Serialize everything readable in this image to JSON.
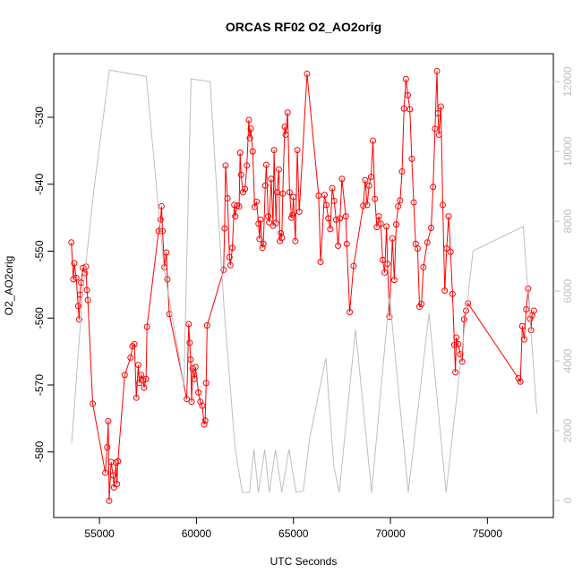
{
  "chart_data": {
    "type": "line",
    "title": "ORCAS RF02 O2_AO2orig",
    "x_label": "UTC Seconds",
    "y_label": "O2_AO2orig",
    "xlim": [
      52640,
      78400
    ],
    "xticks": [
      55000,
      60000,
      65000,
      70000,
      75000
    ],
    "ylim": [
      -589.8,
      -520.5
    ],
    "yticks": [
      -580,
      -570,
      -560,
      -550,
      -540,
      -530
    ],
    "y2lim": [
      -490,
      12800
    ],
    "y2ticks": [
      0,
      2000,
      4000,
      6000,
      8000,
      10000,
      12000
    ],
    "y2_color": "#bebebe",
    "series": [
      {
        "color": "#ff0000",
        "marker": "open-circle",
        "axis": "y",
        "x": [
          53550,
          53650,
          53700,
          53800,
          53900,
          53950,
          54000,
          54050,
          54150,
          54250,
          54300,
          54350,
          54400,
          54650,
          55300,
          55400,
          55450,
          55500,
          55600,
          55700,
          55750,
          55850,
          55900,
          55950,
          56300,
          56600,
          56700,
          56800,
          56900,
          57000,
          57050,
          57150,
          57250,
          57300,
          57400,
          57450,
          58050,
          58150,
          58200,
          58250,
          58350,
          58450,
          58500,
          58600,
          59500,
          59600,
          59650,
          59700,
          59750,
          59800,
          59900,
          59950,
          60100,
          60200,
          60300,
          60400,
          60450,
          60500,
          60550,
          61400,
          61450,
          61500,
          61600,
          61700,
          61750,
          61850,
          61950,
          62000,
          62100,
          62200,
          62250,
          62300,
          62400,
          62500,
          62600,
          62700,
          62750,
          62800,
          62900,
          63000,
          63100,
          63200,
          63250,
          63300,
          63400,
          63450,
          63550,
          63600,
          63700,
          63750,
          63850,
          63950,
          64000,
          64100,
          64150,
          64250,
          64300,
          64350,
          64400,
          64450,
          64550,
          64600,
          64700,
          64800,
          64900,
          64950,
          65000,
          65100,
          65200,
          65300,
          65700,
          66300,
          66400,
          66600,
          66700,
          66800,
          66900,
          67000,
          67100,
          67200,
          67300,
          67400,
          67500,
          67700,
          67750,
          67900,
          68100,
          68600,
          68700,
          68800,
          68900,
          69000,
          69100,
          69200,
          69300,
          69400,
          69500,
          69600,
          69700,
          69800,
          69850,
          69950,
          70100,
          70200,
          70300,
          70400,
          70500,
          70600,
          70700,
          70800,
          70900,
          71000,
          71100,
          71200,
          71300,
          71400,
          71500,
          71600,
          71700,
          71900,
          72100,
          72200,
          72300,
          72400,
          72450,
          72500,
          72600,
          72700,
          72800,
          72900,
          73000,
          73100,
          73200,
          73300,
          73350,
          73400,
          73500,
          73600,
          73700,
          73800,
          73900,
          74000,
          76600,
          76700,
          76800,
          76900,
          77000,
          77100,
          77200,
          77250,
          77300,
          77400
        ],
        "values": [
          -548.7,
          -554.2,
          -551.8,
          -554,
          -558.2,
          -560.2,
          -556.5,
          -554.7,
          -552.5,
          -553.3,
          -552.3,
          -555.8,
          -557.3,
          -572.8,
          -583.1,
          -579.3,
          -575.4,
          -587.3,
          -581.5,
          -583.5,
          -585.3,
          -581.6,
          -584.8,
          -581.4,
          -568.5,
          -565.9,
          -564.2,
          -563.9,
          -571.9,
          -567,
          -569.7,
          -568.5,
          -569.3,
          -570.4,
          -569.1,
          -561.3,
          -547,
          -545.3,
          -543.3,
          -547,
          -552.4,
          -550.2,
          -554.2,
          -559.4,
          -572.1,
          -560.9,
          -563.7,
          -566.2,
          -572.5,
          -567.5,
          -569.1,
          -567.3,
          -571.1,
          -572.5,
          -573.1,
          -575.9,
          -575.3,
          -569.7,
          -561.1,
          -552.8,
          -546.6,
          -537.2,
          -542.1,
          -550.9,
          -552.1,
          -549.5,
          -543.1,
          -544.8,
          -543.2,
          -543.3,
          -535.3,
          -538.6,
          -541.2,
          -540.7,
          -537.2,
          -530.4,
          -533.1,
          -531.7,
          -535.1,
          -543.4,
          -542.6,
          -545.9,
          -548.2,
          -545.3,
          -549.5,
          -548.9,
          -540.2,
          -537.1,
          -544.8,
          -545.7,
          -539.2,
          -546.2,
          -534.9,
          -545.8,
          -541.2,
          -537.8,
          -548.5,
          -547.3,
          -548,
          -541.4,
          -531.4,
          -532.6,
          -529.3,
          -541.2,
          -545,
          -544.6,
          -541.9,
          -548.5,
          -534.9,
          -544.1,
          -523.5,
          -541.7,
          -551.6,
          -541.6,
          -543.1,
          -545.1,
          -546.7,
          -540.6,
          -542.5,
          -545.3,
          -549.2,
          -545.1,
          -539.2,
          -544.8,
          -548.9,
          -559.1,
          -552.2,
          -543.2,
          -539.4,
          -543.1,
          -540.2,
          -538.9,
          -533.5,
          -542.2,
          -546.4,
          -544.8,
          -545.9,
          -551.3,
          -553.2,
          -546.3,
          -551.9,
          -559.8,
          -548.1,
          -554.3,
          -546,
          -543.3,
          -542.4,
          -538.1,
          -528.7,
          -524.3,
          -526.7,
          -528.8,
          -536.2,
          -542.7,
          -548.9,
          -549.6,
          -558.3,
          -557.9,
          -552.4,
          -548.7,
          -546.5,
          -540.4,
          -531.7,
          -523.1,
          -529.4,
          -532.6,
          -528.4,
          -543.1,
          -555.9,
          -549.6,
          -544.8,
          -550.1,
          -556.4,
          -564,
          -568.1,
          -562.9,
          -563.9,
          -565.4,
          -566.5,
          -560.2,
          -558.9,
          -557.8,
          -569,
          -569.5,
          -561.2,
          -563.2,
          -558.7,
          -555.6,
          -560.1,
          -561.8,
          -559.6,
          -558.9
        ]
      },
      {
        "color": "#bebebe",
        "axis": "y2",
        "x": [
          53566,
          54120,
          54720,
          55510,
          57410,
          58330,
          59350,
          59720,
          60700,
          61440,
          61990,
          62360,
          62730,
          62960,
          63190,
          63520,
          63750,
          64070,
          64400,
          64770,
          65140,
          65510,
          65830,
          66670,
          67080,
          67360,
          68200,
          69030,
          69950,
          70920,
          71990,
          72870,
          74260,
          76850,
          77550
        ],
        "values": [
          1640,
          5870,
          8950,
          12330,
          12150,
          6640,
          3310,
          12080,
          12000,
          5360,
          1510,
          230,
          230,
          1460,
          230,
          1460,
          230,
          1460,
          230,
          1460,
          230,
          280,
          1770,
          4080,
          1000,
          230,
          4900,
          230,
          5870,
          230,
          5360,
          230,
          7150,
          7850,
          2490
        ]
      }
    ]
  }
}
